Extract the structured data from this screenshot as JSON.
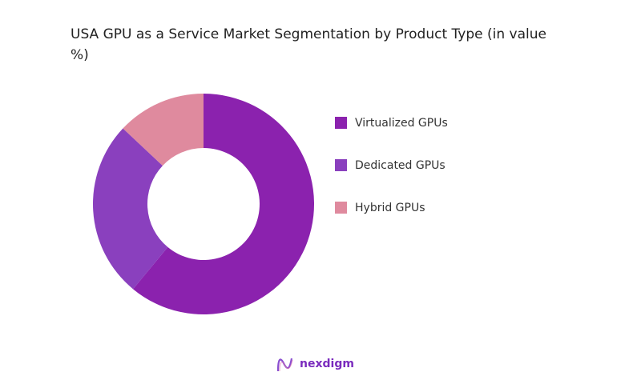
{
  "chart_data": {
    "type": "pie",
    "variant": "donut",
    "title": "USA GPU as a Service Market Segmentation by Product Type (in value %)",
    "categories": [
      "Virtualized GPUs",
      "Dedicated GPUs",
      "Hybrid GPUs"
    ],
    "values": [
      61,
      26,
      13
    ],
    "colors": [
      "#8B22AE",
      "#8A40BE",
      "#DF8A9E"
    ],
    "legend": "right"
  },
  "brand": {
    "name": "nexdigm",
    "color": "#7a2bbd"
  }
}
